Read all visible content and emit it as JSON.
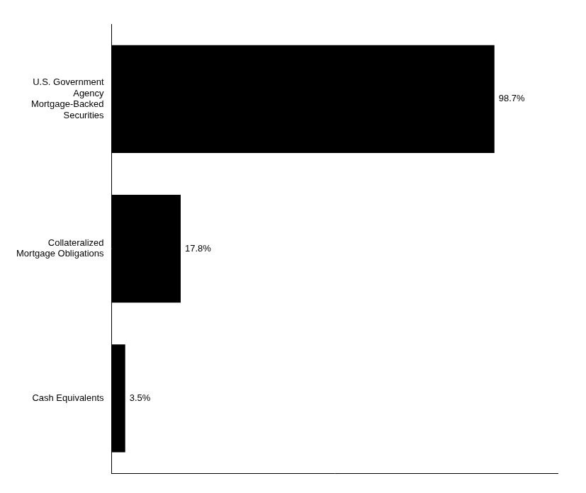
{
  "chart_data": {
    "type": "bar",
    "orientation": "horizontal",
    "categories": [
      "Cash Equivalents",
      "Collateralized\nMortgage Obligations",
      "U.S. Government\nAgency\nMortgage-Backed\nSecurities"
    ],
    "values": [
      3.5,
      17.8,
      98.7
    ],
    "value_labels": [
      "3.5%",
      "17.8%",
      "98.7%"
    ],
    "data_labels": true,
    "color": "#000000",
    "xlim": [
      0,
      115
    ],
    "tick_labels": "y",
    "grid": false
  }
}
